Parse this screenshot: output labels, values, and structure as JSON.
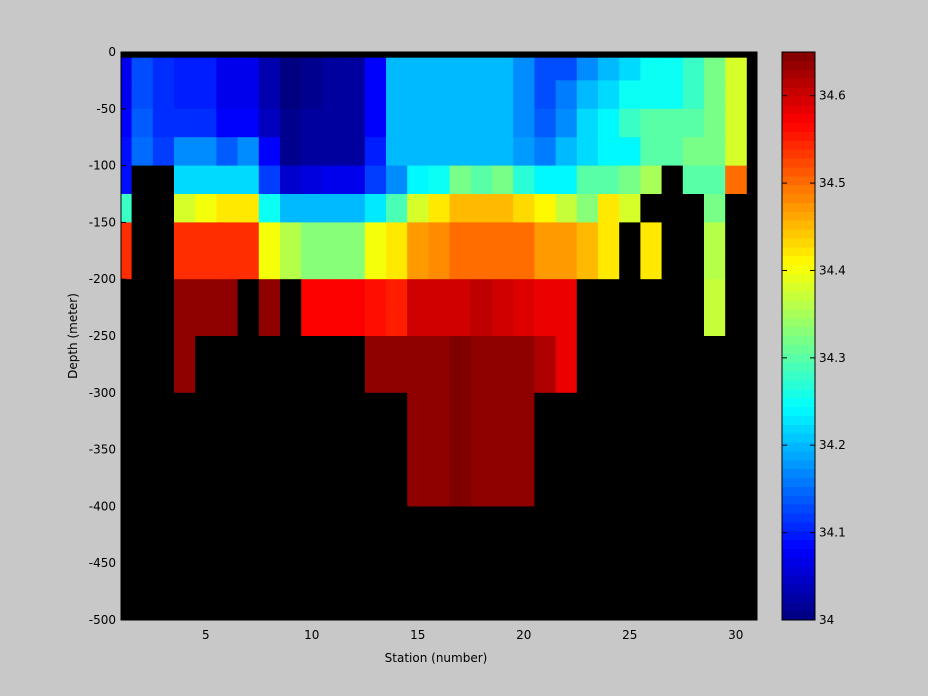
{
  "chart_data": {
    "type": "heatmap",
    "title": "",
    "xlabel": "Station (number)",
    "ylabel": "Depth (meter)",
    "xlim": [
      1,
      31
    ],
    "ylim": [
      -500,
      0
    ],
    "x_ticks": [
      5,
      10,
      15,
      20,
      25,
      30
    ],
    "y_ticks": [
      0,
      -50,
      -100,
      -150,
      -200,
      -250,
      -300,
      -350,
      -400,
      -450,
      -500
    ],
    "grid": false,
    "colorbar": {
      "position": "right",
      "range": [
        34.0,
        34.65
      ],
      "ticks": [
        34,
        34.1,
        34.2,
        34.3,
        34.4,
        34.5,
        34.6
      ],
      "colormap": "jet"
    },
    "missing_color": "#000000",
    "background_color": "#c8c8c8",
    "stations": [
      1,
      2,
      3,
      4,
      5,
      6,
      7,
      8,
      9,
      10,
      11,
      12,
      13,
      14,
      15,
      16,
      17,
      18,
      19,
      20,
      21,
      22,
      23,
      24,
      25,
      26,
      27,
      28,
      29,
      30
    ],
    "depth_bins": [
      [
        0,
        -5
      ],
      [
        -5,
        -25
      ],
      [
        -25,
        -50
      ],
      [
        -50,
        -75
      ],
      [
        -75,
        -100
      ],
      [
        -100,
        -125
      ],
      [
        -125,
        -150
      ],
      [
        -150,
        -175
      ],
      [
        -175,
        -200
      ],
      [
        -200,
        -225
      ],
      [
        -225,
        -250
      ],
      [
        -250,
        -275
      ],
      [
        -275,
        -300
      ],
      [
        -300,
        -325
      ],
      [
        -325,
        -350
      ],
      [
        -350,
        -375
      ],
      [
        -375,
        -400
      ],
      [
        -400,
        -500
      ]
    ],
    "salinity": [
      [
        null,
        null,
        null,
        null,
        null,
        null,
        null,
        null,
        null,
        null,
        null,
        null,
        null,
        null,
        null,
        null,
        null,
        null,
        null,
        null,
        null,
        null,
        null,
        null,
        null,
        null,
        null,
        null,
        null,
        null
      ],
      [
        34.07,
        34.13,
        34.11,
        34.1,
        34.1,
        34.07,
        34.07,
        34.03,
        34.0,
        34.01,
        34.02,
        34.02,
        34.08,
        34.2,
        34.2,
        34.2,
        34.2,
        34.2,
        34.2,
        34.17,
        34.13,
        34.13,
        34.17,
        34.2,
        34.22,
        34.25,
        34.25,
        34.28,
        34.32,
        34.38
      ],
      [
        34.07,
        34.13,
        34.11,
        34.1,
        34.1,
        34.07,
        34.07,
        34.03,
        34.0,
        34.01,
        34.02,
        34.02,
        34.08,
        34.2,
        34.2,
        34.2,
        34.2,
        34.2,
        34.2,
        34.17,
        34.13,
        34.16,
        34.2,
        34.22,
        34.25,
        34.25,
        34.25,
        34.28,
        34.32,
        34.38
      ],
      [
        34.08,
        34.14,
        34.11,
        34.11,
        34.11,
        34.08,
        34.08,
        34.04,
        34.01,
        34.02,
        34.02,
        34.02,
        34.08,
        34.2,
        34.2,
        34.2,
        34.2,
        34.2,
        34.2,
        34.17,
        34.14,
        34.17,
        34.22,
        34.24,
        34.28,
        34.3,
        34.3,
        34.3,
        34.32,
        34.38
      ],
      [
        34.09,
        34.15,
        34.12,
        34.17,
        34.17,
        34.14,
        34.17,
        34.08,
        34.01,
        34.02,
        34.02,
        34.02,
        34.1,
        34.2,
        34.2,
        34.2,
        34.2,
        34.2,
        34.2,
        34.18,
        34.16,
        34.2,
        34.22,
        34.24,
        34.24,
        34.3,
        34.3,
        34.32,
        34.32,
        34.38
      ],
      [
        34.09,
        null,
        null,
        34.22,
        34.22,
        34.22,
        34.22,
        34.12,
        34.05,
        34.06,
        34.07,
        34.07,
        34.12,
        34.17,
        34.24,
        34.25,
        34.32,
        34.3,
        34.32,
        34.27,
        34.24,
        34.24,
        34.3,
        34.3,
        34.32,
        34.35,
        null,
        34.3,
        34.3,
        34.5
      ],
      [
        34.28,
        null,
        null,
        34.38,
        34.4,
        34.42,
        34.42,
        34.25,
        34.2,
        34.2,
        34.2,
        34.2,
        34.23,
        34.29,
        34.38,
        34.42,
        34.45,
        34.45,
        34.45,
        34.43,
        34.41,
        34.37,
        34.33,
        34.42,
        34.38,
        null,
        null,
        null,
        34.32,
        null
      ],
      [
        34.54,
        null,
        null,
        34.54,
        34.54,
        34.54,
        34.54,
        34.4,
        34.36,
        34.33,
        34.33,
        34.33,
        34.4,
        34.42,
        34.47,
        34.48,
        34.5,
        34.5,
        34.5,
        34.5,
        34.47,
        34.47,
        34.45,
        34.42,
        null,
        34.42,
        null,
        null,
        34.36,
        null
      ],
      [
        34.54,
        null,
        null,
        34.54,
        34.54,
        34.54,
        34.54,
        34.4,
        34.36,
        34.33,
        34.33,
        34.33,
        34.4,
        34.42,
        34.47,
        34.48,
        34.5,
        34.5,
        34.5,
        34.5,
        34.47,
        34.47,
        34.45,
        34.42,
        null,
        34.42,
        null,
        null,
        34.36,
        null
      ],
      [
        null,
        null,
        null,
        34.64,
        34.64,
        34.64,
        null,
        34.64,
        null,
        34.57,
        34.57,
        34.57,
        34.56,
        34.55,
        34.6,
        34.6,
        34.6,
        34.61,
        34.6,
        34.59,
        34.58,
        34.58,
        null,
        null,
        null,
        null,
        null,
        null,
        34.37,
        null
      ],
      [
        null,
        null,
        null,
        34.64,
        34.64,
        34.64,
        null,
        34.64,
        null,
        34.57,
        34.57,
        34.57,
        34.56,
        34.55,
        34.6,
        34.6,
        34.6,
        34.61,
        34.6,
        34.59,
        34.58,
        34.58,
        null,
        null,
        null,
        null,
        null,
        null,
        34.37,
        null
      ],
      [
        null,
        null,
        null,
        34.64,
        null,
        null,
        null,
        null,
        null,
        null,
        null,
        null,
        34.64,
        34.64,
        34.64,
        34.64,
        34.66,
        34.64,
        34.64,
        34.64,
        34.62,
        34.58,
        null,
        null,
        null,
        null,
        null,
        null,
        null,
        null
      ],
      [
        null,
        null,
        null,
        34.64,
        null,
        null,
        null,
        null,
        null,
        null,
        null,
        null,
        34.64,
        34.64,
        34.64,
        34.64,
        34.66,
        34.64,
        34.64,
        34.64,
        34.62,
        34.58,
        null,
        null,
        null,
        null,
        null,
        null,
        null,
        null
      ],
      [
        null,
        null,
        null,
        null,
        null,
        null,
        null,
        null,
        null,
        null,
        null,
        null,
        null,
        null,
        34.64,
        34.64,
        34.66,
        34.64,
        34.64,
        34.64,
        null,
        null,
        null,
        null,
        null,
        null,
        null,
        null,
        null,
        null
      ],
      [
        null,
        null,
        null,
        null,
        null,
        null,
        null,
        null,
        null,
        null,
        null,
        null,
        null,
        null,
        34.64,
        34.64,
        34.66,
        34.64,
        34.64,
        34.64,
        null,
        null,
        null,
        null,
        null,
        null,
        null,
        null,
        null,
        null
      ],
      [
        null,
        null,
        null,
        null,
        null,
        null,
        null,
        null,
        null,
        null,
        null,
        null,
        null,
        null,
        34.64,
        34.64,
        34.66,
        34.64,
        34.64,
        34.64,
        null,
        null,
        null,
        null,
        null,
        null,
        null,
        null,
        null,
        null
      ],
      [
        null,
        null,
        null,
        null,
        null,
        null,
        null,
        null,
        null,
        null,
        null,
        null,
        null,
        null,
        34.64,
        34.64,
        34.66,
        34.64,
        34.64,
        34.64,
        null,
        null,
        null,
        null,
        null,
        null,
        null,
        null,
        null,
        null
      ],
      [
        null,
        null,
        null,
        null,
        null,
        null,
        null,
        null,
        null,
        null,
        null,
        null,
        null,
        null,
        null,
        null,
        null,
        null,
        null,
        null,
        null,
        null,
        null,
        null,
        null,
        null,
        null,
        null,
        null,
        null
      ]
    ]
  }
}
